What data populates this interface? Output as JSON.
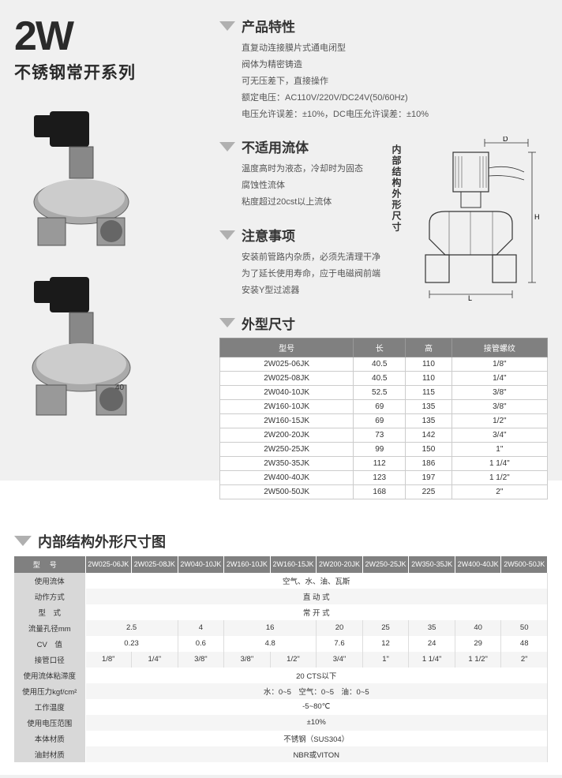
{
  "product": {
    "code": "2W",
    "series": "不锈钢常开系列"
  },
  "sections": {
    "features": {
      "title": "产品特性",
      "lines": [
        "直复动连接膜片式通电闭型",
        "阀体为精密铸造",
        "可无压差下，直接操作",
        "额定电压：AC110V/220V/DC24V(50/60Hz)",
        "电压允许误差：±10%，DC电压允许误差：±10%"
      ]
    },
    "unfit": {
      "title": "不适用流体",
      "lines": [
        "温度高时为液态，冷却时为固态",
        "腐蚀性流体",
        "粘度超过20cst以上流体"
      ]
    },
    "caution": {
      "title": "注意事项",
      "lines": [
        "安装前管路内杂质，必须先清理干净",
        "为了延长使用寿命，应于电磁阀前端",
        "安装Y型过滤器"
      ]
    },
    "dimensions": {
      "title": "外型尺寸"
    },
    "diagram_label": "内部结构外形尺寸",
    "bottom_title": "内部结构外形尺寸图",
    "dim_labels": {
      "D": "D",
      "H": "H",
      "L": "L"
    }
  },
  "dim_table": {
    "headers": [
      "型号",
      "长",
      "高",
      "接管螺纹"
    ],
    "rows": [
      [
        "2W025-06JK",
        "40.5",
        "110",
        "1/8\""
      ],
      [
        "2W025-08JK",
        "40.5",
        "110",
        "1/4\""
      ],
      [
        "2W040-10JK",
        "52.5",
        "115",
        "3/8\""
      ],
      [
        "2W160-10JK",
        "69",
        "135",
        "3/8\""
      ],
      [
        "2W160-15JK",
        "69",
        "135",
        "1/2\""
      ],
      [
        "2W200-20JK",
        "73",
        "142",
        "3/4\""
      ],
      [
        "2W250-25JK",
        "99",
        "150",
        "1\""
      ],
      [
        "2W350-35JK",
        "112",
        "186",
        "1 1/4\""
      ],
      [
        "2W400-40JK",
        "123",
        "197",
        "1 1/2\""
      ],
      [
        "2W500-50JK",
        "168",
        "225",
        "2\""
      ]
    ]
  },
  "spec_table": {
    "model_label": "型号",
    "models": [
      "2W025-06JK",
      "2W025-08JK",
      "2W040-10JK",
      "2W160-10JK",
      "2W160-15JK",
      "2W200-20JK",
      "2W250-25JK",
      "2W350-35JK",
      "2W400-40JK",
      "2W500-50JK"
    ],
    "rows": [
      {
        "label": "使用流体",
        "span": 10,
        "value": "空气、水、油、瓦斯"
      },
      {
        "label": "动作方式",
        "span": 10,
        "value": "直 动 式"
      },
      {
        "label": "型　式",
        "span": 10,
        "value": "常 开 式"
      },
      {
        "label": "流量孔径mm",
        "cells": [
          {
            "s": 2,
            "v": "2.5"
          },
          {
            "s": 1,
            "v": "4"
          },
          {
            "s": 2,
            "v": "16"
          },
          {
            "s": 1,
            "v": "20"
          },
          {
            "s": 1,
            "v": "25"
          },
          {
            "s": 1,
            "v": "35"
          },
          {
            "s": 1,
            "v": "40"
          },
          {
            "s": 1,
            "v": "50"
          }
        ]
      },
      {
        "label": "CV　值",
        "cells": [
          {
            "s": 2,
            "v": "0.23"
          },
          {
            "s": 1,
            "v": "0.6"
          },
          {
            "s": 2,
            "v": "4.8"
          },
          {
            "s": 1,
            "v": "7.6"
          },
          {
            "s": 1,
            "v": "12"
          },
          {
            "s": 1,
            "v": "24"
          },
          {
            "s": 1,
            "v": "29"
          },
          {
            "s": 1,
            "v": "48"
          }
        ]
      },
      {
        "label": "接管口径",
        "cells": [
          {
            "s": 1,
            "v": "1/8\""
          },
          {
            "s": 1,
            "v": "1/4\""
          },
          {
            "s": 1,
            "v": "3/8\""
          },
          {
            "s": 1,
            "v": "3/8\""
          },
          {
            "s": 1,
            "v": "1/2\""
          },
          {
            "s": 1,
            "v": "3/4\""
          },
          {
            "s": 1,
            "v": "1\""
          },
          {
            "s": 1,
            "v": "1 1/4\""
          },
          {
            "s": 1,
            "v": "1 1/2\""
          },
          {
            "s": 1,
            "v": "2\""
          }
        ]
      },
      {
        "label": "使用流体粘滞度",
        "span": 10,
        "value": "20 CTS以下"
      },
      {
        "label": "使用压力kgf/cm²",
        "span": 10,
        "value": "水：0~5　空气：0~5　油：0~5"
      },
      {
        "label": "工作温度",
        "span": 10,
        "value": "-5~80℃"
      },
      {
        "label": "使用电压范围",
        "span": 10,
        "value": "±10%"
      },
      {
        "label": "本体材质",
        "span": 10,
        "value": "不锈钢（SUS304）"
      },
      {
        "label": "油封材质",
        "span": 10,
        "value": "NBR或VITON"
      }
    ]
  },
  "colors": {
    "header_bg": "#808080",
    "label_bg": "#d8d8d8",
    "triangle": "#b0b0b0",
    "text": "#333333",
    "body_text": "#555555"
  }
}
